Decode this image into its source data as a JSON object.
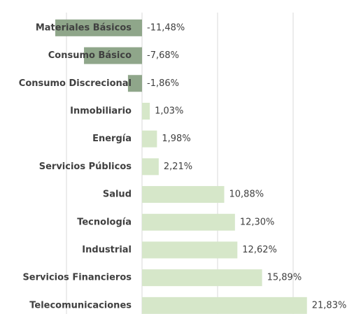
{
  "chart_data": {
    "type": "barh",
    "categories": [
      "Materiales Básicos",
      "Consumo Básico",
      "Consumo Discrecional",
      "Inmobiliario",
      "Energía",
      "Servicios Públicos",
      "Salud",
      "Tecnología",
      "Industrial",
      "Servicios Financieros",
      "Telecomunicaciones"
    ],
    "values": [
      -11.48,
      -7.68,
      -1.86,
      1.03,
      1.98,
      2.21,
      10.88,
      12.3,
      12.62,
      15.89,
      21.83
    ],
    "value_labels": [
      "-11,48%",
      "-7,68%",
      "-1,86%",
      "1,03%",
      "1,98%",
      "2,21%",
      "10,88%",
      "12,30%",
      "12,62%",
      "15,89%",
      "21,83%"
    ],
    "color": "#d6e7c9",
    "negative_color": "#8fa68a",
    "xlim": [
      -15,
      25
    ],
    "xticks": [
      -10,
      0,
      10,
      20
    ],
    "grid": true
  }
}
